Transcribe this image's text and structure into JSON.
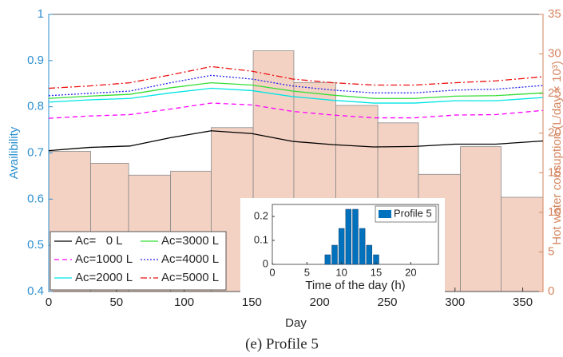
{
  "chart_data": [
    {
      "type": "line",
      "xlabel": "Day",
      "ylabel": "Availibility",
      "y2label": "Hot water consuption (L/day × 10³)",
      "xlim": [
        0,
        365
      ],
      "xticks": [
        0,
        50,
        100,
        150,
        200,
        250,
        300,
        350
      ],
      "ylim": [
        0.4,
        1
      ],
      "yticks": [
        0.4,
        0.5,
        0.6,
        0.7,
        0.8,
        0.9,
        1
      ],
      "y2lim": [
        0,
        35
      ],
      "y2ticks": [
        0,
        5,
        10,
        15,
        20,
        25,
        30,
        35
      ],
      "y_color": "#2b8fd0",
      "y2_color": "#d5855e",
      "legend": "lower left",
      "step": {
        "axis": "y2",
        "color": "#f3d2c3",
        "bins": [
          0,
          31,
          59,
          90,
          120,
          151,
          181,
          212,
          243,
          273,
          304,
          334,
          365
        ],
        "values": [
          17.7,
          16.2,
          14.7,
          15.2,
          20.7,
          30.4,
          26.4,
          23.5,
          21.3,
          14.8,
          18.3,
          11.9
        ]
      },
      "x": [
        0,
        30,
        60,
        90,
        120,
        150,
        180,
        210,
        240,
        270,
        300,
        330,
        365
      ],
      "series": [
        {
          "name": "Ac=   0 L",
          "color": "#000000",
          "style": "solid",
          "values": [
            0.705,
            0.712,
            0.715,
            0.733,
            0.748,
            0.742,
            0.725,
            0.718,
            0.713,
            0.714,
            0.719,
            0.719,
            0.726
          ]
        },
        {
          "name": "Ac=1000 L",
          "color": "#ff00ff",
          "style": "dashed",
          "values": [
            0.775,
            0.78,
            0.783,
            0.795,
            0.808,
            0.804,
            0.79,
            0.782,
            0.776,
            0.776,
            0.782,
            0.783,
            0.792
          ]
        },
        {
          "name": "Ac=2000 L",
          "color": "#00e5e5",
          "style": "solid",
          "values": [
            0.81,
            0.815,
            0.818,
            0.83,
            0.84,
            0.835,
            0.822,
            0.814,
            0.808,
            0.808,
            0.813,
            0.813,
            0.82
          ]
        },
        {
          "name": "Ac=3000 L",
          "color": "#33dd33",
          "style": "solid",
          "values": [
            0.818,
            0.823,
            0.827,
            0.841,
            0.852,
            0.847,
            0.834,
            0.825,
            0.818,
            0.818,
            0.823,
            0.824,
            0.83
          ]
        },
        {
          "name": "Ac=4000 L",
          "color": "#2222ee",
          "style": "dotted",
          "values": [
            0.824,
            0.829,
            0.834,
            0.852,
            0.868,
            0.86,
            0.845,
            0.836,
            0.83,
            0.83,
            0.836,
            0.838,
            0.846
          ]
        },
        {
          "name": "Ac=5000 L",
          "color": "#ee1111",
          "style": "dashdot",
          "values": [
            0.84,
            0.845,
            0.852,
            0.869,
            0.887,
            0.877,
            0.86,
            0.852,
            0.847,
            0.847,
            0.852,
            0.856,
            0.865
          ]
        }
      ]
    },
    {
      "type": "bar",
      "xlabel": "Time of the day (h)",
      "xlim": [
        0,
        24
      ],
      "xticks": [
        0,
        5,
        10,
        15,
        20
      ],
      "ylim": [
        0,
        0.25
      ],
      "yticks": [
        0,
        0.1,
        0.2
      ],
      "x": [
        8,
        9,
        10,
        11,
        12,
        13,
        14,
        15
      ],
      "series": [
        {
          "name": "Profile 5",
          "color": "#0072bd",
          "values": [
            0.04,
            0.08,
            0.15,
            0.23,
            0.23,
            0.15,
            0.08,
            0.04
          ]
        }
      ]
    }
  ],
  "caption": "(e) Profile 5"
}
